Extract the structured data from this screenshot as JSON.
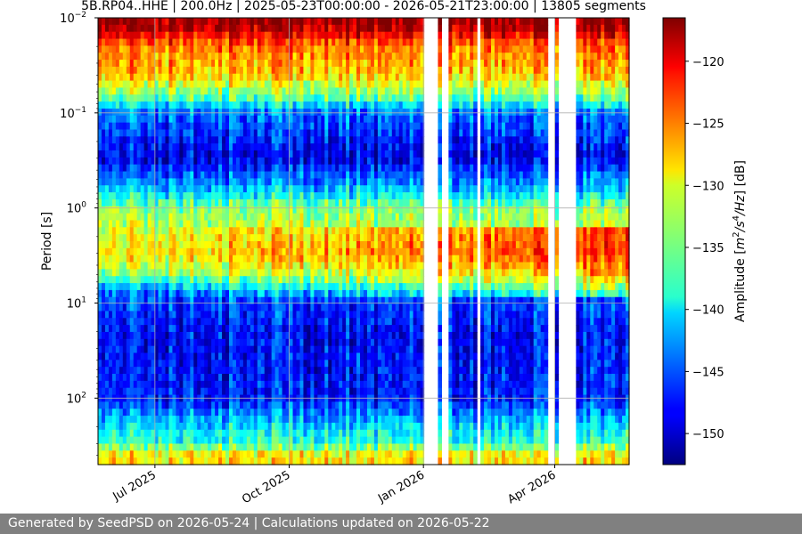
{
  "chart_data": {
    "type": "heatmap",
    "title": "5B.RP04..HHE | 200.0Hz | 2025-05-23T00:00:00 - 2026-05-21T23:00:00 | 13805 segments",
    "x_start": "2025-05-23T00:00:00",
    "x_end": "2026-05-21T23:00:00",
    "x_ticks": [
      {
        "label": "Jul 2025",
        "date": "2025-07-01"
      },
      {
        "label": "Oct 2025",
        "date": "2025-10-01"
      },
      {
        "label": "Jan 2026",
        "date": "2026-01-01"
      },
      {
        "label": "Apr 2026",
        "date": "2026-04-01"
      }
    ],
    "ylabel": "Period [s]",
    "y_scale": "log",
    "y_inverted": true,
    "ylim": [
      0.01,
      500
    ],
    "y_ticks": [
      {
        "label_base": "10",
        "label_exp": "−2",
        "value": 0.01
      },
      {
        "label_base": "10",
        "label_exp": "−1",
        "value": 0.1
      },
      {
        "label_base": "10",
        "label_exp": "0",
        "value": 1
      },
      {
        "label_base": "10",
        "label_exp": "1",
        "value": 10
      },
      {
        "label_base": "10",
        "label_exp": "2",
        "value": 100
      }
    ],
    "grid": true,
    "colorbar": {
      "label": "Amplitude [m²/s⁴/Hz] [dB]",
      "label_parts": {
        "prefix": "Amplitude [",
        "m": "m",
        "two": "2",
        "s": "/s",
        "four": "4",
        "hz": "/Hz",
        "suffix": "] [dB]"
      },
      "colormap": "jet",
      "range": [
        -152.5,
        -116.5
      ],
      "ticks": [
        -120,
        -125,
        -130,
        -135,
        -140,
        -145,
        -150
      ],
      "tick_labels": [
        "−120",
        "−125",
        "−130",
        "−135",
        "−140",
        "−145",
        "−150"
      ]
    },
    "period_profile_db": [
      {
        "period": 0.012,
        "db": -117
      },
      {
        "period": 0.02,
        "db": -125
      },
      {
        "period": 0.04,
        "db": -128
      },
      {
        "period": 0.07,
        "db": -136
      },
      {
        "period": 0.1,
        "db": -144
      },
      {
        "period": 0.3,
        "db": -149
      },
      {
        "period": 0.7,
        "db": -140
      },
      {
        "period": 1.0,
        "db": -134
      },
      {
        "period": 3.0,
        "db": -130
      },
      {
        "period": 5.0,
        "db": -135
      },
      {
        "period": 8.0,
        "db": -145
      },
      {
        "period": 20.0,
        "db": -148
      },
      {
        "period": 100.0,
        "db": -147
      },
      {
        "period": 200.0,
        "db": -140
      },
      {
        "period": 300.0,
        "db": -137
      },
      {
        "period": 400.0,
        "db": -129
      }
    ],
    "data_gaps": [
      [
        "2026-01-02",
        "2026-01-11"
      ],
      [
        "2026-01-14",
        "2026-01-17"
      ],
      [
        "2026-02-06",
        "2026-02-09"
      ],
      [
        "2026-03-26",
        "2026-04-01"
      ],
      [
        "2026-04-03",
        "2026-04-15"
      ]
    ]
  },
  "footer": {
    "text": "Generated by SeedPSD on 2026-05-24 | Calculations updated on 2026-05-22"
  }
}
